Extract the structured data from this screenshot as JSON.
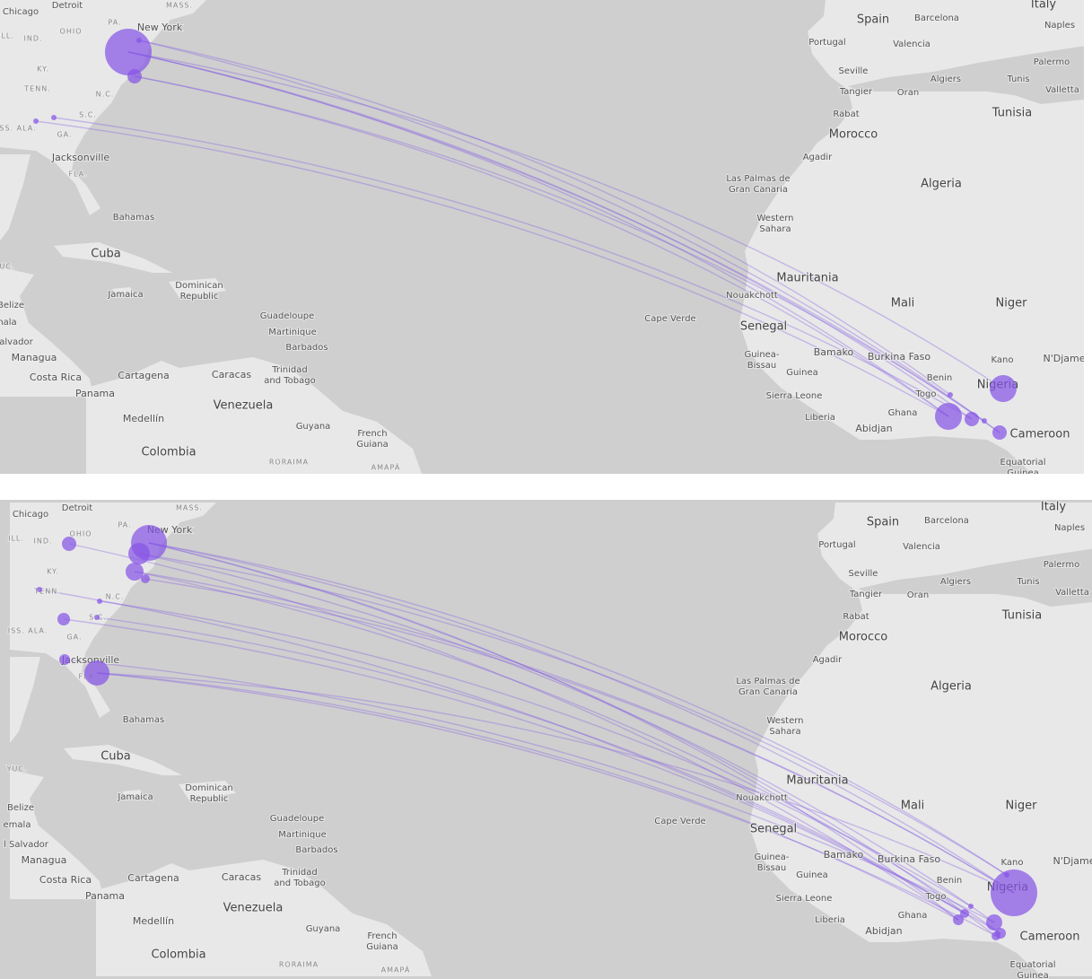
{
  "panels": [
    {
      "labels": [
        "Chicago",
        "Detroit",
        "MASS.",
        "PA.",
        "New York",
        "OHIO",
        "ILL.",
        "IND.",
        "KY.",
        "TENN.",
        "N.C.",
        "S.C.",
        "SS. ALA.",
        "GA.",
        "Jacksonville",
        "FLA.",
        "Bahamas",
        "Cuba",
        "UC.",
        "Jamaica",
        [
          "Dominican",
          "Republic"
        ],
        "Belize",
        "nala",
        "alvador",
        "Guadeloupe",
        "Martinique",
        "Barbados",
        "Managua",
        "Costa Rica",
        "Cartagena",
        "Caracas",
        [
          "Trinidad",
          "and Tobago"
        ],
        "Panama",
        "Venezuela",
        "Medellín",
        "Guyana",
        [
          "French",
          "Guiana"
        ],
        "Colombia",
        "RORAIMA",
        "AMAPÁ",
        "Spain",
        "Barcelona",
        "Italy",
        "Naples",
        "Portugal",
        "Valencia",
        "Seville",
        "Algiers",
        "Tunis",
        "Palermo",
        "Valletta",
        "Tangier",
        "Oran",
        "Tunisia",
        "Rabat",
        "Morocco",
        "Agadir",
        "Algeria",
        [
          "Las Palmas de",
          "Gran Canaria"
        ],
        [
          "Western",
          "Sahara"
        ],
        "Mauritania",
        "Nouakchott",
        "Mali",
        "Niger",
        "Cape Verde",
        "Senegal",
        "Bamako",
        "Burkina Faso",
        "Kano",
        "N'Djame",
        [
          "Guinea-",
          "Bissau"
        ],
        "Guinea",
        "Benin",
        "Nigeria",
        "Togo",
        "Sierra Leone",
        "Ghana",
        "Liberia",
        "Abidjan",
        "Cameroon",
        [
          "Equatorial",
          "Guinea"
        ]
      ]
    },
    {
      "labels": [
        "Chicago",
        "Detroit",
        "MASS.",
        "PA.",
        "New York",
        "OHIO",
        "ILL.",
        "IND.",
        "KY.",
        "TENN.",
        "N.C.",
        "S.C.",
        "ISS. ALA.",
        "GA.",
        "Jacksonville",
        "FLA.",
        "Bahamas",
        "Cuba",
        "YUC.",
        "Jamaica",
        [
          "Dominican",
          "Republic"
        ],
        "Belize",
        "emala",
        "l Salvador",
        "Guadeloupe",
        "Martinique",
        "Barbados",
        "Managua",
        "Costa Rica",
        "Cartagena",
        "Caracas",
        [
          "Trinidad",
          "and Tobago"
        ],
        "Panama",
        "Venezuela",
        "Medellín",
        "Guyana",
        [
          "French",
          "Guiana"
        ],
        "Colombia",
        "RORAIMA",
        "AMAPÁ",
        "Spain",
        "Barcelona",
        "Italy",
        "Naples",
        "Portugal",
        "Valencia",
        "Seville",
        "Algiers",
        "Tunis",
        "Palermo",
        "Valletta",
        "Tangier",
        "Oran",
        "Tunisia",
        "Rabat",
        "Morocco",
        "Agadir",
        "Algeria",
        [
          "Las Palmas de",
          "Gran Canaria"
        ],
        [
          "Western",
          "Sahara"
        ],
        "Mauritania",
        "Nouakchott",
        "Mali",
        "Niger",
        "Cape Verde",
        "Senegal",
        "Bamako",
        "Burkina Faso",
        "Kano",
        "N'Djame",
        [
          "Guinea-",
          "Bissau"
        ],
        "Guinea",
        "Benin",
        "Nigeria",
        "Togo",
        "Sierra Leone",
        "Ghana",
        "Liberia",
        "Abidjan",
        "Cameroon",
        [
          "Equatorial",
          "Guinea"
        ]
      ]
    }
  ]
}
